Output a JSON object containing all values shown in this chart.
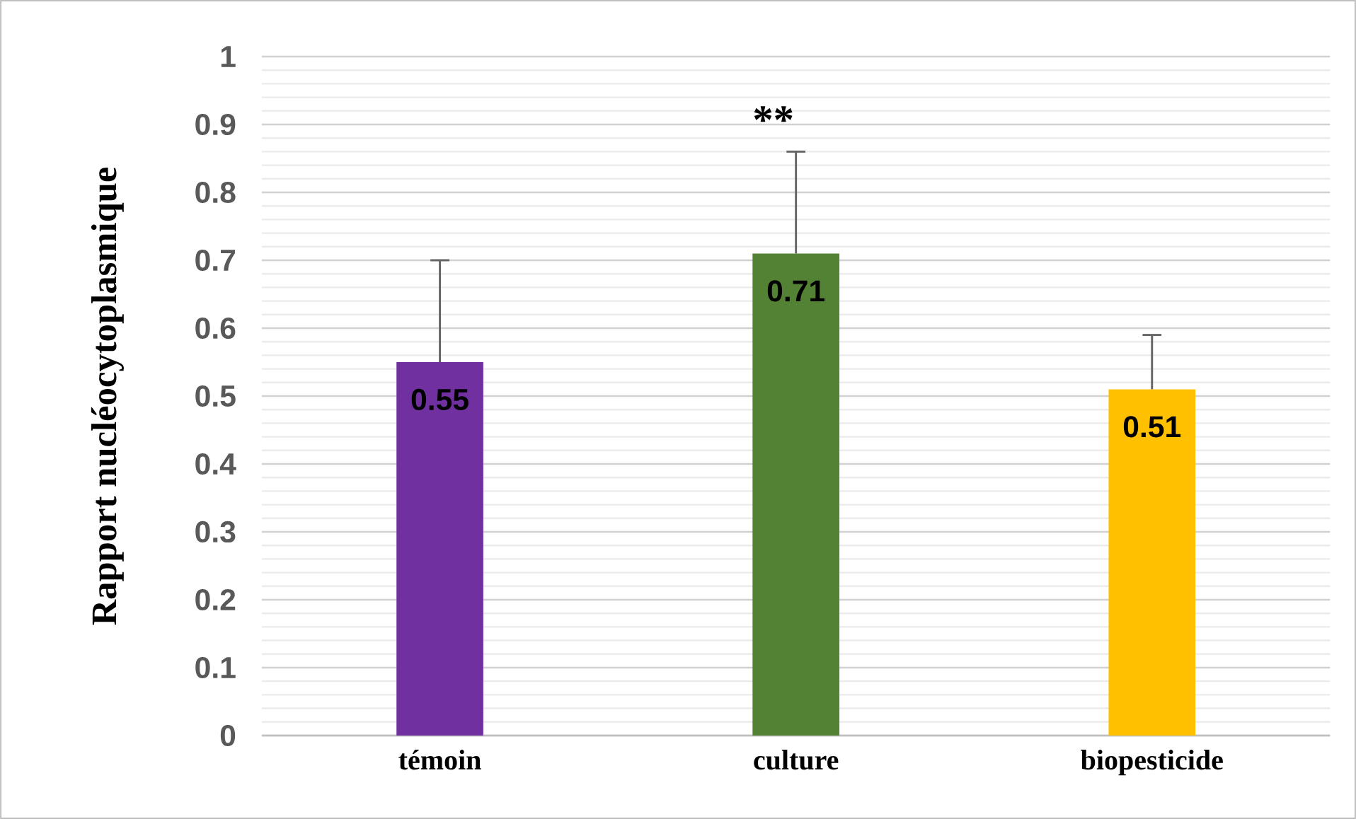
{
  "chart_data": {
    "type": "bar",
    "ylabel": "Rapport nucléocytoplasmique",
    "categories": [
      "témoin",
      "culture",
      "biopesticide"
    ],
    "values": [
      0.55,
      0.71,
      0.51
    ],
    "colors": [
      "#7030a0",
      "#548235",
      "#ffc000"
    ],
    "errors": [
      [
        0.55,
        0.7
      ],
      [
        0.71,
        0.86
      ],
      [
        0.51,
        0.59
      ]
    ],
    "data_labels": true,
    "annotations": [
      "**"
    ],
    "ylim": [
      0,
      1
    ],
    "yticks": [
      0,
      0.1,
      0.2,
      0.3,
      0.4,
      0.5,
      0.6,
      0.7,
      0.8,
      0.9,
      1
    ],
    "grid": true
  }
}
